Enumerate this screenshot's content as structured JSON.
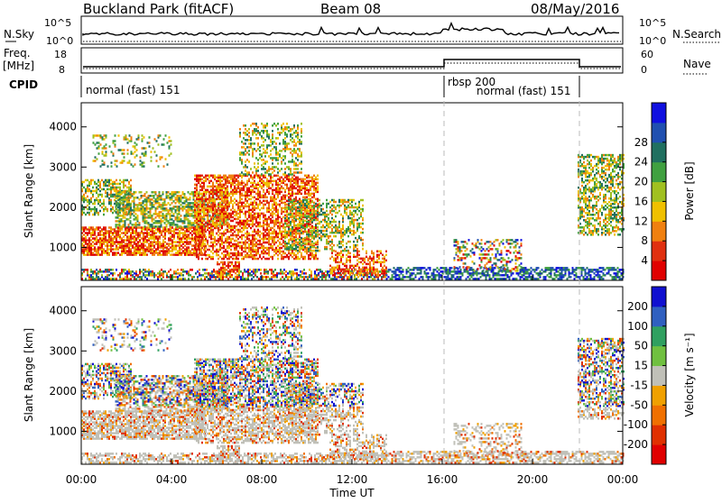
{
  "header": {
    "title": "Buckland Park (fitACF)",
    "beam": "Beam 08",
    "date": "08/May/2016"
  },
  "status_panel": {
    "nsky_label": "N.Sky",
    "nsky_ticks": [
      "10^5",
      "10^0"
    ],
    "nsearch_label": "N.Search",
    "nsearch_ticks": [
      "10^5",
      "10^0"
    ],
    "freq_label": "Freq.",
    "freq_unit": "[MHz]",
    "freq_ticks": [
      "18",
      "8"
    ],
    "nave_label": "Nave",
    "nave_ticks": [
      "60",
      "0"
    ],
    "cpid_label": "CPID",
    "cpid_entries": [
      "normal (fast) 151",
      "rbsp 200",
      "normal (fast) 151"
    ]
  },
  "time_axis": {
    "ticks": [
      "00:00",
      "04:00",
      "08:00",
      "12:00",
      "16:00",
      "20:00",
      "00:00"
    ],
    "label": "Time UT"
  },
  "chart_data": [
    {
      "type": "heatmap",
      "name": "power",
      "xlabel": "Time UT",
      "ylabel": "Slant Range [km]",
      "x_range_hours": [
        0,
        24
      ],
      "ylim_km": [
        180,
        4600
      ],
      "yticks": [
        "1000",
        "2000",
        "3000",
        "4000"
      ],
      "colorbar": {
        "label": "Power [dB]",
        "ticks": [
          "4",
          "8",
          "12",
          "16",
          "20",
          "24",
          "28"
        ],
        "colors": [
          "#1010e0",
          "#2050b0",
          "#207060",
          "#40a040",
          "#a0c020",
          "#f0c000",
          "#f08010",
          "#e03010",
          "#e00000"
        ]
      }
    },
    {
      "type": "heatmap",
      "name": "velocity",
      "xlabel": "Time UT",
      "ylabel": "Slant Range [km]",
      "x_range_hours": [
        0,
        24
      ],
      "ylim_km": [
        180,
        4600
      ],
      "yticks": [
        "1000",
        "2000",
        "3000",
        "4000"
      ],
      "colorbar": {
        "label": "Velocity [m s⁻¹]",
        "ticks": [
          "200",
          "100",
          "50",
          "15",
          "-15",
          "-50",
          "-100",
          "-200"
        ],
        "colors": [
          "#1010d0",
          "#3060c0",
          "#30a060",
          "#70c040",
          "#c0c0b8",
          "#f0a000",
          "#f07000",
          "#e03000",
          "#e00000"
        ]
      }
    }
  ]
}
